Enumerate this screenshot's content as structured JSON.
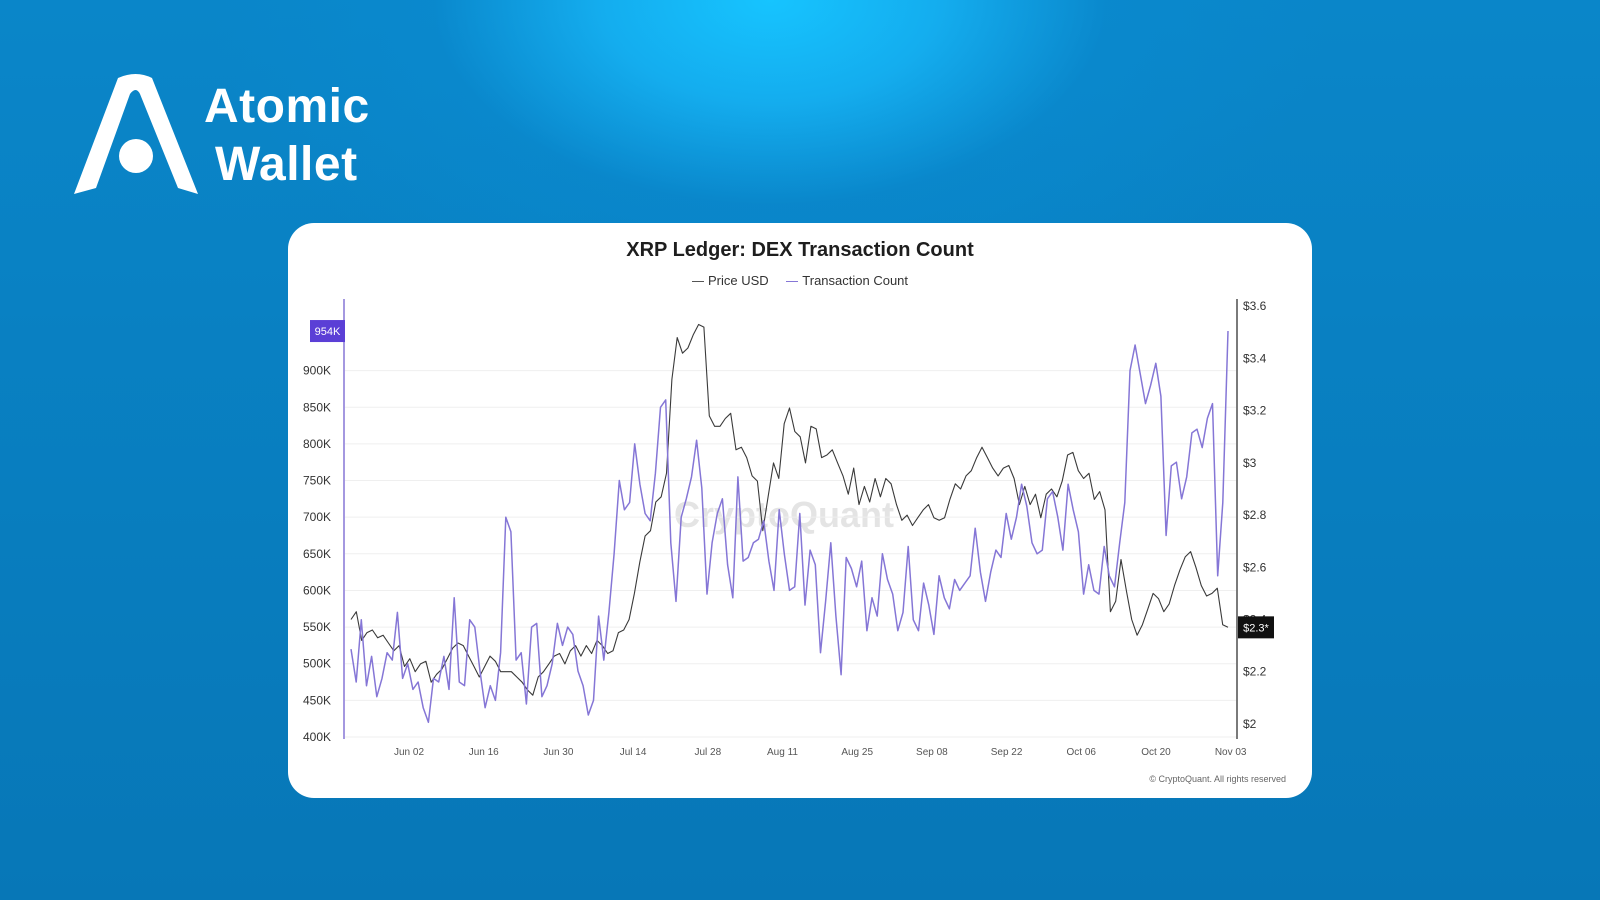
{
  "brand": {
    "name_line1": "Atomic",
    "name_line2": "Wallet",
    "logo_icon": "atomic-wallet-logo-icon",
    "colors": {
      "background": "#0a86c9",
      "logo": "#ffffff"
    }
  },
  "chart_data": {
    "type": "line",
    "title": "XRP Ledger: DEX Transaction Count",
    "legend": [
      "Price USD",
      "Transaction Count"
    ],
    "legend_position": "top-center",
    "watermark": "CryptoQuant",
    "copyright": "© CryptoQuant. All rights reserved",
    "x_ticks": [
      "Jun 02",
      "Jun 16",
      "Jun 30",
      "Jul 14",
      "Jul 28",
      "Aug 11",
      "Aug 25",
      "Sep 08",
      "Sep 22",
      "Oct 06",
      "Oct 20",
      "Nov 03"
    ],
    "x_range": [
      "May 21",
      "Nov 04"
    ],
    "left_axis": {
      "ticks": [
        "400K",
        "450K",
        "500K",
        "550K",
        "600K",
        "650K",
        "700K",
        "750K",
        "800K",
        "850K",
        "900K"
      ],
      "range": [
        400000,
        995000
      ]
    },
    "right_axis": {
      "ticks": [
        "$2",
        "$2.2",
        "$2.4",
        "$2.6",
        "$2.8",
        "$3",
        "$3.2",
        "$3.4",
        "$3.6"
      ],
      "range": [
        1.95,
        3.62
      ]
    },
    "current_labels": {
      "transaction_count": "954K",
      "price": "$2.3*"
    },
    "grid": true,
    "series": [
      {
        "name": "Price USD",
        "axis": "right",
        "color": "#3a3a3a",
        "values": [
          2.4,
          2.43,
          2.32,
          2.35,
          2.36,
          2.33,
          2.34,
          2.31,
          2.28,
          2.3,
          2.22,
          2.25,
          2.2,
          2.23,
          2.24,
          2.16,
          2.19,
          2.21,
          2.25,
          2.29,
          2.31,
          2.3,
          2.26,
          2.22,
          2.18,
          2.22,
          2.26,
          2.24,
          2.2,
          2.2,
          2.2,
          2.18,
          2.16,
          2.13,
          2.11,
          2.18,
          2.2,
          2.23,
          2.26,
          2.27,
          2.23,
          2.28,
          2.3,
          2.26,
          2.3,
          2.27,
          2.32,
          2.3,
          2.27,
          2.28,
          2.35,
          2.36,
          2.4,
          2.5,
          2.62,
          2.72,
          2.74,
          2.85,
          2.87,
          2.96,
          3.32,
          3.48,
          3.42,
          3.44,
          3.49,
          3.53,
          3.52,
          3.18,
          3.14,
          3.14,
          3.17,
          3.19,
          3.05,
          3.06,
          3.02,
          2.95,
          2.93,
          2.74,
          2.87,
          3.0,
          2.94,
          3.15,
          3.21,
          3.12,
          3.1,
          3.0,
          3.14,
          3.13,
          3.02,
          3.03,
          3.05,
          3.0,
          2.95,
          2.88,
          2.98,
          2.84,
          2.91,
          2.85,
          2.94,
          2.87,
          2.94,
          2.92,
          2.84,
          2.78,
          2.8,
          2.76,
          2.79,
          2.82,
          2.84,
          2.79,
          2.78,
          2.79,
          2.86,
          2.92,
          2.9,
          2.95,
          2.97,
          3.02,
          3.06,
          3.02,
          2.98,
          2.95,
          2.98,
          2.99,
          2.94,
          2.84,
          2.91,
          2.84,
          2.88,
          2.79,
          2.88,
          2.9,
          2.87,
          2.93,
          3.03,
          3.04,
          2.97,
          2.94,
          2.96,
          2.86,
          2.89,
          2.82,
          2.43,
          2.47,
          2.63,
          2.51,
          2.4,
          2.34,
          2.38,
          2.44,
          2.5,
          2.48,
          2.43,
          2.46,
          2.53,
          2.59,
          2.64,
          2.66,
          2.6,
          2.53,
          2.49,
          2.5,
          2.52,
          2.38,
          2.37
        ]
      },
      {
        "name": "Transaction Count",
        "axis": "left",
        "color": "#8576d6",
        "values": [
          520000,
          475000,
          560000,
          470000,
          510000,
          455000,
          480000,
          515000,
          505000,
          570000,
          480000,
          500000,
          465000,
          475000,
          440000,
          420000,
          480000,
          475000,
          510000,
          465000,
          590000,
          475000,
          470000,
          560000,
          550000,
          490000,
          440000,
          470000,
          450000,
          515000,
          700000,
          680000,
          505000,
          515000,
          445000,
          550000,
          555000,
          455000,
          470000,
          500000,
          555000,
          525000,
          550000,
          540000,
          490000,
          470000,
          430000,
          450000,
          565000,
          505000,
          570000,
          650000,
          750000,
          710000,
          720000,
          800000,
          745000,
          705000,
          695000,
          760000,
          850000,
          860000,
          665000,
          585000,
          700000,
          725000,
          755000,
          805000,
          740000,
          595000,
          665000,
          705000,
          725000,
          635000,
          590000,
          755000,
          640000,
          645000,
          665000,
          670000,
          695000,
          640000,
          600000,
          710000,
          650000,
          600000,
          605000,
          705000,
          580000,
          655000,
          635000,
          515000,
          585000,
          665000,
          565000,
          485000,
          645000,
          630000,
          605000,
          640000,
          545000,
          590000,
          565000,
          650000,
          615000,
          595000,
          545000,
          570000,
          660000,
          560000,
          545000,
          610000,
          580000,
          540000,
          620000,
          590000,
          575000,
          615000,
          600000,
          610000,
          620000,
          685000,
          625000,
          585000,
          625000,
          655000,
          645000,
          705000,
          670000,
          700000,
          745000,
          715000,
          665000,
          650000,
          655000,
          725000,
          735000,
          700000,
          655000,
          745000,
          710000,
          680000,
          595000,
          635000,
          600000,
          595000,
          660000,
          620000,
          605000,
          665000,
          720000,
          900000,
          935000,
          895000,
          855000,
          880000,
          910000,
          865000,
          675000,
          770000,
          775000,
          725000,
          755000,
          815000,
          820000,
          795000,
          835000,
          855000,
          620000,
          720000,
          954000
        ]
      }
    ]
  }
}
